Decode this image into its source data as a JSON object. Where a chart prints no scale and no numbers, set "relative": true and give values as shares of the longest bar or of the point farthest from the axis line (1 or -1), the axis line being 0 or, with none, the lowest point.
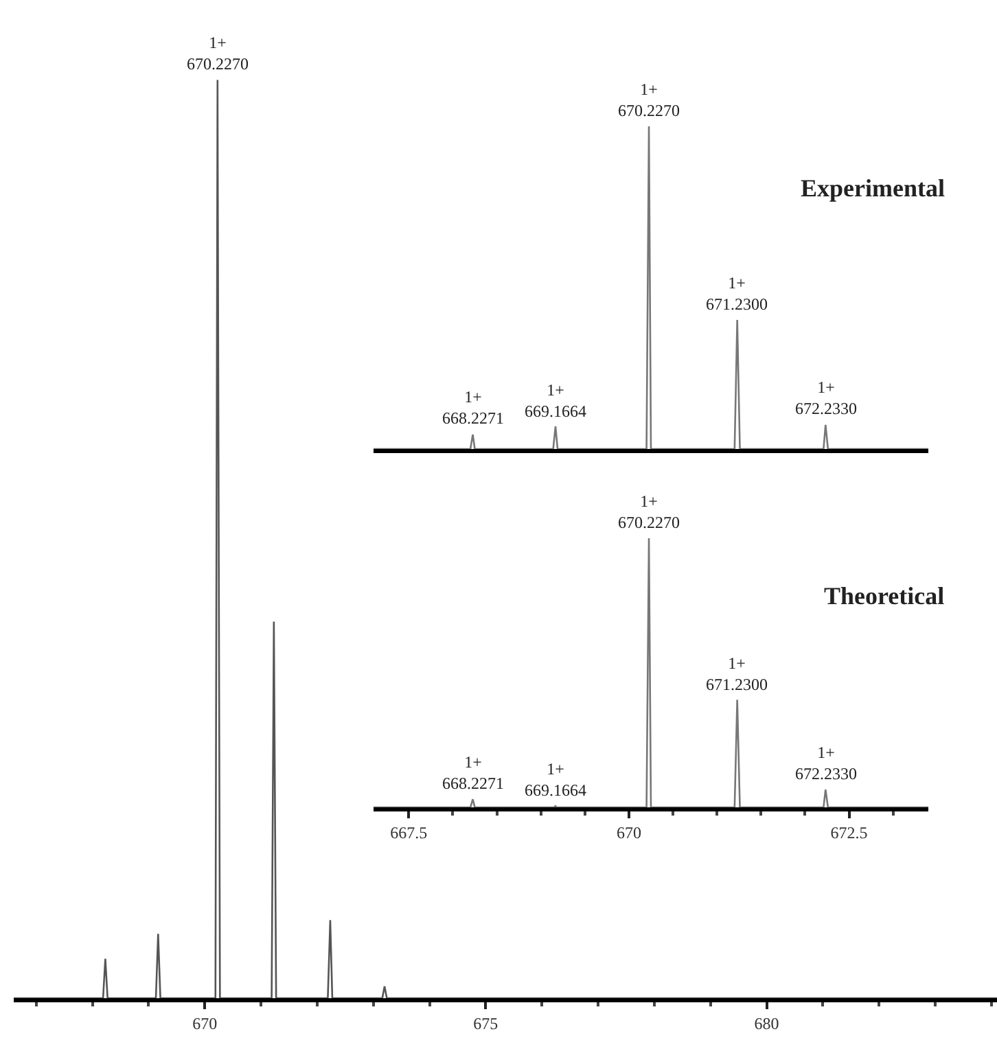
{
  "chart_data": [
    {
      "type": "line",
      "relative": true,
      "color": "#555555",
      "xlim": [
        666.6,
        684.1
      ],
      "xticks": [
        670,
        675,
        680
      ],
      "tick_labels": "x",
      "x": [
        666.6,
        668.19,
        668.23,
        668.27,
        669.13,
        669.17,
        669.21,
        670.19,
        670.227,
        670.27,
        671.19,
        671.23,
        671.27,
        672.19,
        672.233,
        672.27,
        673.16,
        673.2,
        673.24,
        684.1
      ],
      "values": [
        0,
        0,
        0.043,
        0,
        0,
        0.07,
        0,
        0,
        1,
        0,
        0,
        0.41,
        0,
        0,
        0.085,
        0,
        0,
        0.013,
        0,
        0
      ],
      "annotations": [
        {
          "text": "1+\n670.2270",
          "x": 670.227,
          "y": 1
        }
      ]
    },
    {
      "type": "line",
      "relative": true,
      "title": "Experimental",
      "color": "#777777",
      "xlim": [
        667.1,
        673.4
      ],
      "tick_labels": false,
      "x": [
        667.1,
        668.2,
        668.2271,
        668.25,
        669.14,
        669.1664,
        669.19,
        670.2,
        670.227,
        670.25,
        671.2,
        671.23,
        671.26,
        672.21,
        672.233,
        672.26,
        673.4
      ],
      "values": [
        0,
        0,
        0.045,
        0,
        0,
        0.07,
        0,
        0,
        1,
        0,
        0,
        0.4,
        0,
        0,
        0.075,
        0,
        0
      ],
      "annotations": [
        {
          "text": "1+\n668.2271",
          "x": 668.2271,
          "y": 0.045
        },
        {
          "text": "1+\n669.1664",
          "x": 669.1664,
          "y": 0.07
        },
        {
          "text": "1+\n670.2270",
          "x": 670.227,
          "y": 1
        },
        {
          "text": "1+\n671.2300",
          "x": 671.23,
          "y": 0.4
        },
        {
          "text": "1+\n672.2330",
          "x": 672.233,
          "y": 0.075
        }
      ]
    },
    {
      "type": "line",
      "relative": true,
      "title": "Theoretical",
      "color": "#777777",
      "xlim": [
        667.1,
        673.4
      ],
      "xticks": [
        667.5,
        670,
        672.5
      ],
      "tick_labels": "x",
      "x": [
        667.1,
        668.2,
        668.2271,
        668.25,
        669.15,
        669.1664,
        669.18,
        670.2,
        670.227,
        670.25,
        671.2,
        671.23,
        671.26,
        672.21,
        672.233,
        672.26,
        673.4
      ],
      "values": [
        0,
        0,
        0.03,
        0,
        0,
        0.005,
        0,
        0,
        1,
        0,
        0,
        0.4,
        0,
        0,
        0.066,
        0,
        0
      ],
      "annotations": [
        {
          "text": "1+\n668.2271",
          "x": 668.2271,
          "y": 0.03
        },
        {
          "text": "1+\n669.1664",
          "x": 669.1664,
          "y": 0.005
        },
        {
          "text": "1+\n670.2270",
          "x": 670.227,
          "y": 1
        },
        {
          "text": "1+\n671.2300",
          "x": 671.23,
          "y": 0.4
        },
        {
          "text": "1+\n672.2330",
          "x": 672.233,
          "y": 0.066
        }
      ]
    }
  ]
}
